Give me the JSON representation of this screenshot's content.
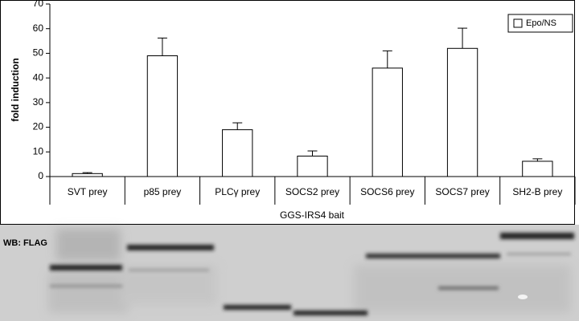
{
  "chart_data": {
    "type": "bar",
    "ylabel": "fold induction",
    "xlabel": "GGS-IRS4 bait",
    "blot_label": "WB: FLAG",
    "categories": [
      "SVT prey",
      "p85 prey",
      "PLCγ prey",
      "SOCS2 prey",
      "SOCS6 prey",
      "SOCS7 prey",
      "SH2-B prey"
    ],
    "series": [
      {
        "name": "Epo/NS",
        "color": "#ffffff",
        "values": [
          1.2,
          49,
          19,
          8.3,
          44,
          52,
          6.2
        ],
        "errors": [
          0.4,
          7.2,
          2.8,
          2.1,
          7,
          8.2,
          1
        ]
      }
    ],
    "ylim": [
      0,
      70
    ],
    "yticks": [
      0,
      10,
      20,
      30,
      40,
      50,
      60,
      70
    ],
    "grid": false,
    "legend": "upper right"
  }
}
